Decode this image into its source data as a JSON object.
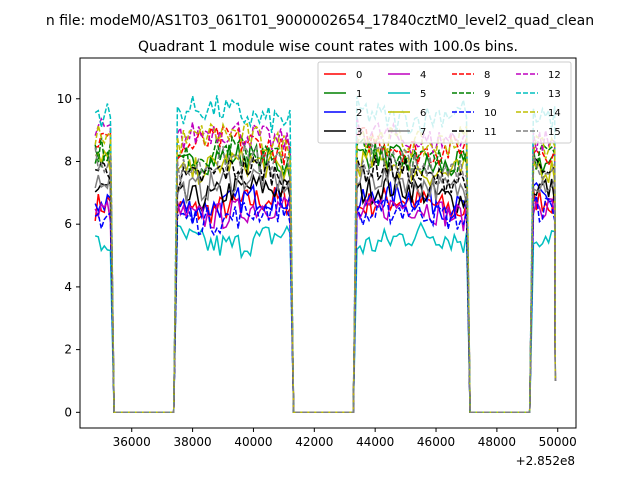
{
  "chart_data": {
    "type": "line",
    "suptitle": "n file: modeM0/AS1T03_061T01_9000002654_17840cztM0_level2_quad_clean",
    "title": "Quadrant 1 module wise count rates with 100.0s bins.",
    "offset_label": "+2.852e8",
    "xlabel": "",
    "ylabel": "",
    "xlim": [
      34300,
      50600
    ],
    "ylim": [
      -0.5,
      11.3
    ],
    "x_ticks": [
      36000,
      38000,
      40000,
      42000,
      44000,
      46000,
      48000,
      50000
    ],
    "y_ticks": [
      0,
      2,
      4,
      6,
      8,
      10
    ],
    "x_tick_labels": [
      "36000",
      "38000",
      "40000",
      "42000",
      "44000",
      "46000",
      "48000",
      "50000"
    ],
    "y_tick_labels": [
      "0",
      "2",
      "4",
      "6",
      "8",
      "10"
    ],
    "legend_location": "upper right",
    "grid": false,
    "active_segments": [
      [
        34800,
        35300
      ],
      [
        37500,
        41200
      ],
      [
        43400,
        47000
      ],
      [
        49200,
        49900
      ]
    ],
    "series": [
      {
        "name": "0",
        "color": "#ff0000",
        "dash": "solid",
        "level": 6.6
      },
      {
        "name": "1",
        "color": "#008000",
        "dash": "solid",
        "level": 8.0
      },
      {
        "name": "2",
        "color": "#0000ff",
        "dash": "solid",
        "level": 6.7
      },
      {
        "name": "3",
        "color": "#000000",
        "dash": "solid",
        "level": 7.0
      },
      {
        "name": "4",
        "color": "#bf00bf",
        "dash": "solid",
        "level": 6.4
      },
      {
        "name": "5",
        "color": "#00bfbf",
        "dash": "solid",
        "level": 5.5
      },
      {
        "name": "6",
        "color": "#bfbf00",
        "dash": "solid",
        "level": 7.8
      },
      {
        "name": "7",
        "color": "#808080",
        "dash": "solid",
        "level": 7.3
      },
      {
        "name": "8",
        "color": "#ff0000",
        "dash": "dashed",
        "level": 8.5
      },
      {
        "name": "9",
        "color": "#008000",
        "dash": "dashed",
        "level": 8.2
      },
      {
        "name": "10",
        "color": "#0000ff",
        "dash": "dashed",
        "level": 6.3
      },
      {
        "name": "11",
        "color": "#000000",
        "dash": "dashed",
        "level": 7.6
      },
      {
        "name": "12",
        "color": "#bf00bf",
        "dash": "dashed",
        "level": 8.8
      },
      {
        "name": "13",
        "color": "#00bfbf",
        "dash": "dashed",
        "level": 9.5
      },
      {
        "name": "14",
        "color": "#bfbf00",
        "dash": "dashed",
        "level": 8.7
      },
      {
        "name": "15",
        "color": "#808080",
        "dash": "dashed",
        "level": 7.9
      }
    ]
  }
}
